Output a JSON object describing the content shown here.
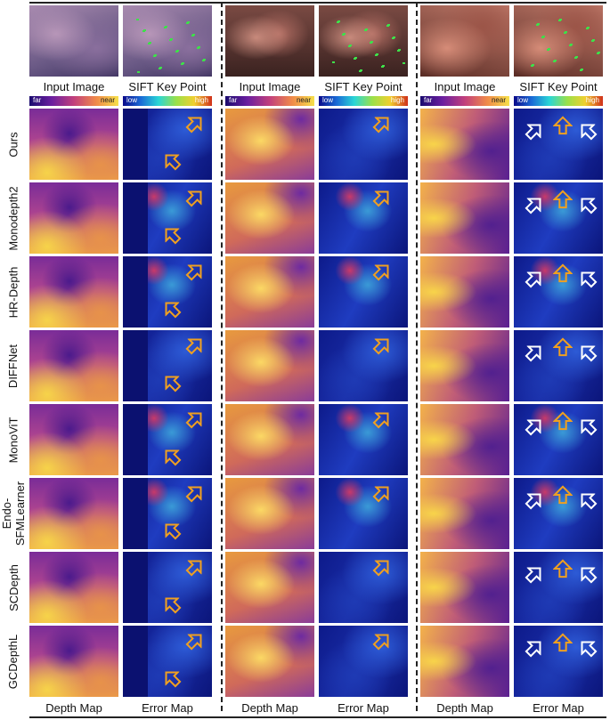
{
  "top_labels": [
    "Input Image",
    "SIFT Key Point"
  ],
  "bottom_labels": [
    "Depth Map",
    "Error Map"
  ],
  "depth_colorbar": {
    "left": "far",
    "right": "near"
  },
  "error_colorbar": {
    "left": "low",
    "right": "high"
  },
  "methods": [
    "Ours",
    "Monodepth2",
    "HR-Depth",
    "DIFFNet",
    "MonoViT",
    "Endo-\nSFMLearner",
    "SCDepth",
    "GCDepthL"
  ],
  "colors": {
    "arrow_highlight": "#f0a020",
    "arrow_white": "#ffffff",
    "error_base": "#0d1a8a"
  }
}
